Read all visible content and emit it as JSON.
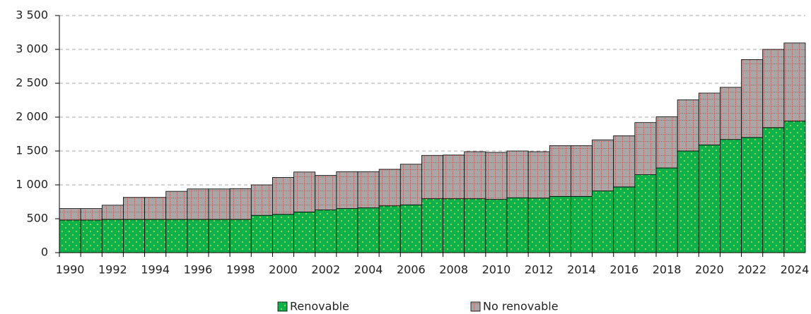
{
  "chart_data": {
    "type": "stacked_bar",
    "categories": [
      "1990",
      null,
      "1992",
      null,
      "1994",
      null,
      "1996",
      null,
      "1998",
      null,
      "2000",
      null,
      "2002",
      null,
      "2004",
      null,
      "2006",
      null,
      "2008",
      null,
      "2010",
      null,
      "2012",
      null,
      "2014",
      null,
      "2016",
      null,
      "2018",
      null,
      "2020",
      null,
      "2022",
      null,
      "2024"
    ],
    "series": [
      {
        "name": "Renovable",
        "color": "#0fb14b",
        "values": [
          480,
          480,
          490,
          490,
          490,
          490,
          490,
          490,
          490,
          550,
          565,
          600,
          630,
          650,
          660,
          690,
          705,
          795,
          795,
          795,
          785,
          810,
          805,
          830,
          830,
          910,
          970,
          1150,
          1250,
          1500,
          1590,
          1670,
          1700,
          1845,
          1940
        ]
      },
      {
        "name": "No renovable",
        "color": "#aaa6a6",
        "values": [
          170,
          170,
          210,
          325,
          325,
          415,
          450,
          450,
          455,
          450,
          545,
          590,
          510,
          545,
          535,
          540,
          600,
          640,
          645,
          695,
          695,
          690,
          685,
          750,
          750,
          755,
          755,
          770,
          755,
          755,
          765,
          770,
          1150,
          1155,
          1155
        ]
      }
    ],
    "ylim": [
      0,
      3500
    ],
    "yticks": [
      0,
      500,
      {
        "value": 1000,
        "label": "1 000"
      },
      {
        "value": 1500,
        "label": "1 500"
      },
      {
        "value": 2000,
        "label": "2 000"
      },
      {
        "value": 2500,
        "label": "2 500"
      },
      {
        "value": 3000,
        "label": "3 000"
      },
      {
        "value": 3500,
        "label": "3 500"
      }
    ],
    "grid": true,
    "legend": "bottom"
  }
}
